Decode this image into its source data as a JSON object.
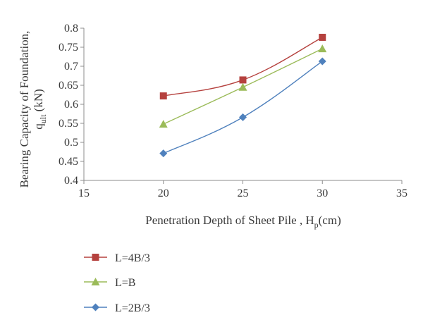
{
  "chart_data": {
    "type": "line",
    "xlim": [
      15,
      35
    ],
    "x_ticks": [
      "15",
      "20",
      "25",
      "30",
      "35"
    ],
    "ylim": [
      0.4,
      0.8
    ],
    "y_ticks": [
      "0.4",
      "0.45",
      "0.5",
      "0.55",
      "0.6",
      "0.65",
      "0.7",
      "0.75",
      "0.8"
    ],
    "xlabel": {
      "pre": "Penetration Depth of Sheet Pile , H",
      "sub": "p",
      "post": "(cm)"
    },
    "ylabel": {
      "line1": "Bearing Capacity of Foundation,",
      "line2_pre": "q",
      "line2_sub": "ult",
      "line2_post": " (kN)"
    },
    "grid": false,
    "legend_position": "bottom-left",
    "series": [
      {
        "name": "L=4B/3",
        "marker": "square",
        "color": "#b5413e",
        "x": [
          20,
          25,
          30
        ],
        "y": [
          0.622,
          0.664,
          0.776
        ]
      },
      {
        "name": "L=B",
        "marker": "triangle",
        "color": "#9bbb59",
        "x": [
          20,
          25,
          30
        ],
        "y": [
          0.548,
          0.645,
          0.746
        ]
      },
      {
        "name": "L=2B/3",
        "marker": "diamond",
        "color": "#4f81bd",
        "x": [
          20,
          25,
          30
        ],
        "y": [
          0.471,
          0.566,
          0.713
        ]
      }
    ]
  }
}
